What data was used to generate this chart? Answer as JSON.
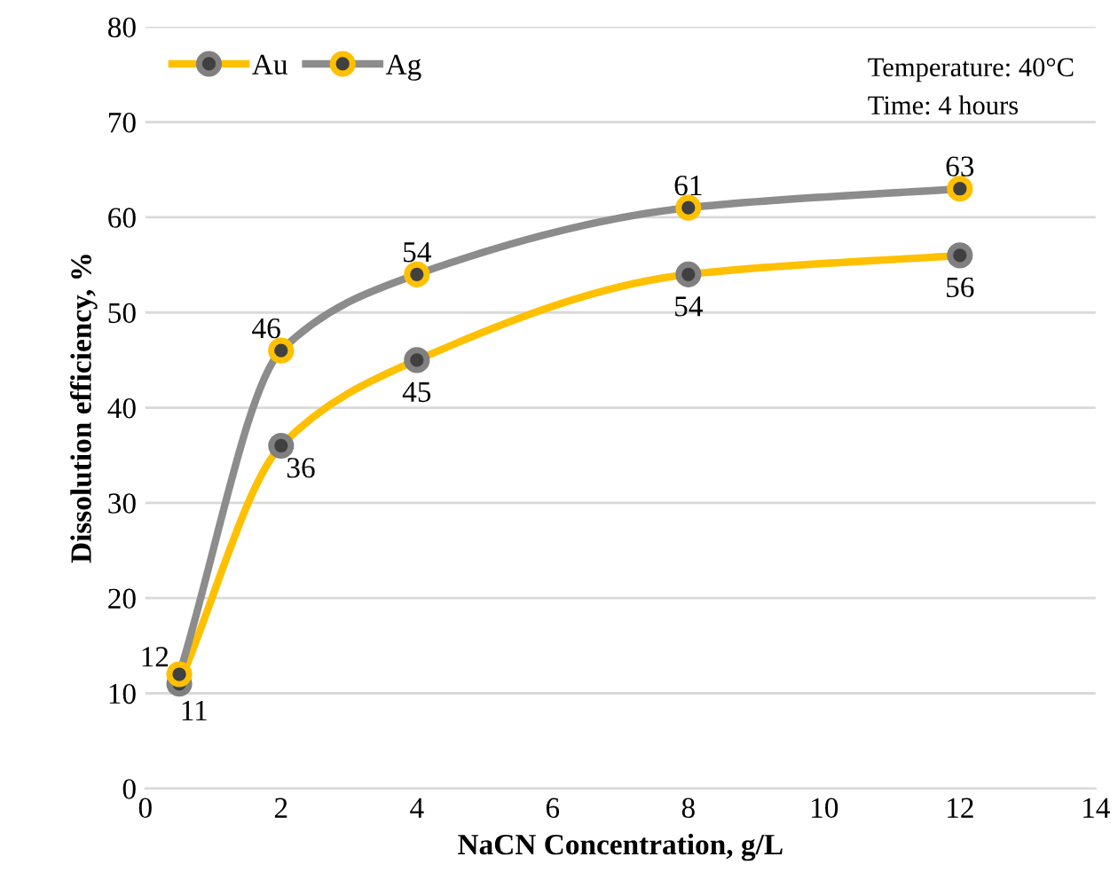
{
  "chart_data": {
    "type": "line",
    "xlabel": "NaCN Concentration, g/L",
    "ylabel": "Dissolution efficiency, %",
    "x": [
      0.5,
      2,
      4,
      8,
      12
    ],
    "series": [
      {
        "name": "Au",
        "color": "#ffc000",
        "colors": [
          "#808080",
          "#808080",
          "#808080",
          "#808080",
          "#808080"
        ],
        "values": [
          11,
          36,
          45,
          54,
          56
        ]
      },
      {
        "name": "Ag",
        "color": "#8c8c8c",
        "colors": [
          "#ffc000",
          "#ffc000",
          "#ffc000",
          "#ffc000",
          "#ffc000"
        ],
        "values": [
          12,
          46,
          54,
          61,
          63
        ]
      }
    ],
    "xlim": [
      0,
      14
    ],
    "xticks": [
      0,
      2,
      4,
      6,
      8,
      10,
      12,
      14
    ],
    "ylim": [
      0,
      80
    ],
    "yticks": [
      0,
      10,
      20,
      30,
      40,
      50,
      60,
      70,
      80
    ],
    "grid": "y",
    "legend": "top left",
    "marker": "circle",
    "line_style": "solid",
    "data_labels": true,
    "annotations": [
      "Temperature: 40°C",
      "Time: 4 hours"
    ]
  }
}
